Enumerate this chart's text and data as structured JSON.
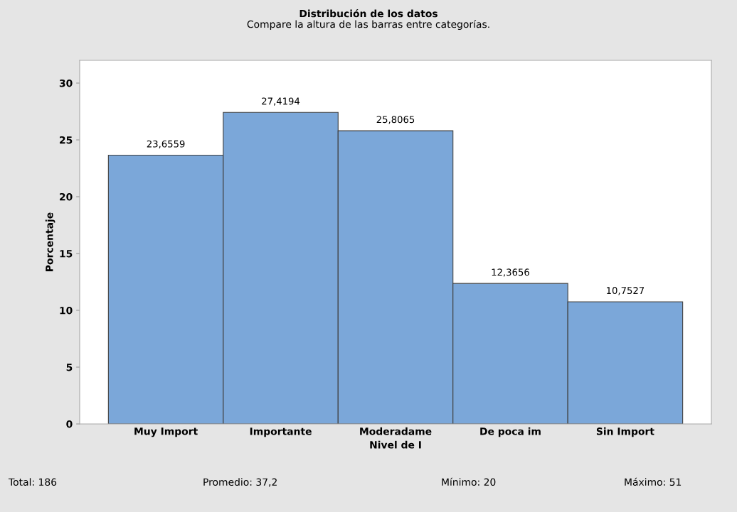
{
  "chart_data": {
    "type": "bar",
    "title": "Distribución de los datos",
    "subtitle": "Compare la altura de las barras entre categorías.",
    "xlabel": "Nivel de I",
    "ylabel": "Porcentaje",
    "categories": [
      "Muy Import",
      "Importante",
      "Moderadame",
      "De poca im",
      "Sin Import"
    ],
    "values": [
      23.6559,
      27.4194,
      25.8065,
      12.3656,
      10.7527
    ],
    "color": "#7ba7d9",
    "data_labels": true,
    "value_labels": [
      "23,6559",
      "27,4194",
      "25,8065",
      "12,3656",
      "10,7527"
    ],
    "ylim": [
      0,
      32
    ],
    "yticks": [
      0,
      5,
      10,
      15,
      20,
      25,
      30
    ],
    "grid": false,
    "legend": false,
    "annotations": [
      "Total: 186",
      "Promedio: 37,2",
      "Mínimo: 20",
      "Máximo: 51"
    ]
  }
}
